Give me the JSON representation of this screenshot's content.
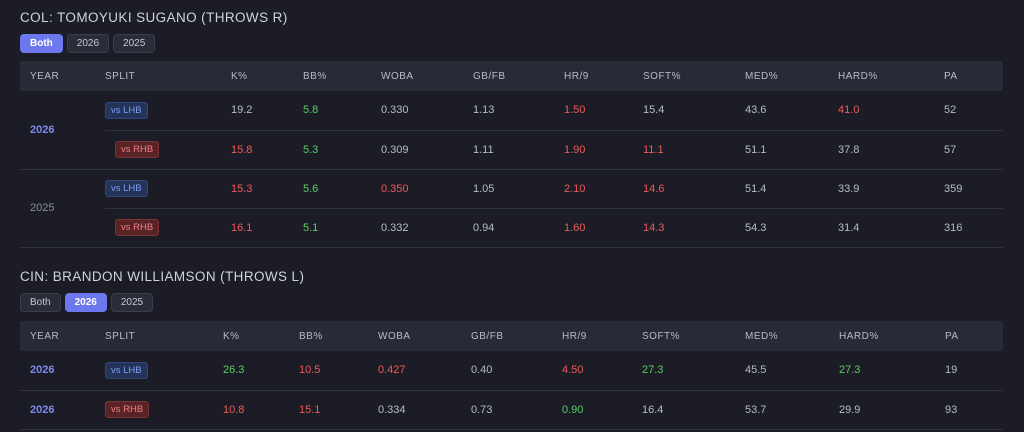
{
  "sections": [
    {
      "title": "COL: TOMOYUKI SUGANO (THROWS R)",
      "tabs": [
        "Both",
        "2026",
        "2025"
      ],
      "active_tab": "Both",
      "headers": [
        "YEAR",
        "SPLIT",
        "K%",
        "BB%",
        "WOBA",
        "GB/FB",
        "HR/9",
        "SOFT%",
        "MED%",
        "HARD%",
        "PA"
      ],
      "groups": [
        {
          "year": "2026",
          "rows": [
            {
              "split": "vs LHB",
              "cells": [
                [
                  "19.2",
                  "neutral"
                ],
                [
                  "5.8",
                  "green"
                ],
                [
                  "0.330",
                  "neutral"
                ],
                [
                  "1.13",
                  "neutral"
                ],
                [
                  "1.50",
                  "red"
                ],
                [
                  "15.4",
                  "neutral"
                ],
                [
                  "43.6",
                  "neutral"
                ],
                [
                  "41.0",
                  "red"
                ],
                [
                  "52",
                  "neutral"
                ]
              ]
            },
            {
              "split": "vs RHB",
              "cells": [
                [
                  "15.8",
                  "red"
                ],
                [
                  "5.3",
                  "green"
                ],
                [
                  "0.309",
                  "neutral"
                ],
                [
                  "1.11",
                  "neutral"
                ],
                [
                  "1.90",
                  "red"
                ],
                [
                  "11.1",
                  "red"
                ],
                [
                  "51.1",
                  "neutral"
                ],
                [
                  "37.8",
                  "neutral"
                ],
                [
                  "57",
                  "neutral"
                ]
              ]
            }
          ]
        },
        {
          "year": "2025",
          "rows": [
            {
              "split": "vs LHB",
              "cells": [
                [
                  "15.3",
                  "red"
                ],
                [
                  "5.6",
                  "green"
                ],
                [
                  "0.350",
                  "red"
                ],
                [
                  "1.05",
                  "neutral"
                ],
                [
                  "2.10",
                  "red"
                ],
                [
                  "14.6",
                  "red"
                ],
                [
                  "51.4",
                  "neutral"
                ],
                [
                  "33.9",
                  "neutral"
                ],
                [
                  "359",
                  "neutral"
                ]
              ]
            },
            {
              "split": "vs RHB",
              "cells": [
                [
                  "16.1",
                  "red"
                ],
                [
                  "5.1",
                  "green"
                ],
                [
                  "0.332",
                  "neutral"
                ],
                [
                  "0.94",
                  "neutral"
                ],
                [
                  "1.60",
                  "red"
                ],
                [
                  "14.3",
                  "red"
                ],
                [
                  "54.3",
                  "neutral"
                ],
                [
                  "31.4",
                  "neutral"
                ],
                [
                  "316",
                  "neutral"
                ]
              ]
            }
          ]
        }
      ]
    },
    {
      "title": "CIN: BRANDON WILLIAMSON (THROWS L)",
      "tabs": [
        "Both",
        "2026",
        "2025"
      ],
      "active_tab": "2026",
      "headers": [
        "YEAR",
        "SPLIT",
        "K%",
        "BB%",
        "WOBA",
        "GB/FB",
        "HR/9",
        "SOFT%",
        "MED%",
        "HARD%",
        "PA"
      ],
      "rows": [
        {
          "year": "2026",
          "split": "vs LHB",
          "cells": [
            [
              "26.3",
              "green"
            ],
            [
              "10.5",
              "red"
            ],
            [
              "0.427",
              "red"
            ],
            [
              "0.40",
              "neutral"
            ],
            [
              "4.50",
              "red"
            ],
            [
              "27.3",
              "green"
            ],
            [
              "45.5",
              "neutral"
            ],
            [
              "27.3",
              "green"
            ],
            [
              "19",
              "neutral"
            ]
          ]
        },
        {
          "year": "2026",
          "split": "vs RHB",
          "cells": [
            [
              "10.8",
              "red"
            ],
            [
              "15.1",
              "red"
            ],
            [
              "0.334",
              "neutral"
            ],
            [
              "0.73",
              "neutral"
            ],
            [
              "0.90",
              "green"
            ],
            [
              "16.4",
              "neutral"
            ],
            [
              "53.7",
              "neutral"
            ],
            [
              "29.9",
              "neutral"
            ],
            [
              "93",
              "neutral"
            ]
          ]
        }
      ]
    }
  ]
}
